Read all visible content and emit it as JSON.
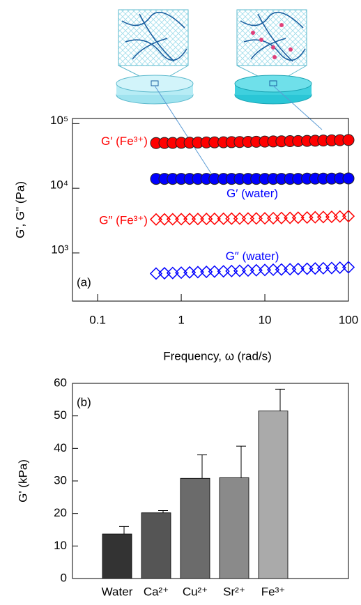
{
  "chart_data": [
    {
      "type": "scatter",
      "xscale": "log",
      "yscale": "log",
      "x_label": "Frequency, ω (rad/s)",
      "y_label": "G', G\" (Pa)",
      "annotation": "(a)",
      "x": [
        0.5,
        0.63,
        0.79,
        1.0,
        1.26,
        1.58,
        2.0,
        2.5,
        3.2,
        4.0,
        5.0,
        6.3,
        7.9,
        10,
        12.6,
        15.8,
        20,
        25,
        32,
        40,
        50,
        63,
        79,
        100
      ],
      "series": [
        {
          "name": "G′ (Fe³⁺)",
          "color": "#ff0000",
          "marker": "circle",
          "values": [
            50000,
            50200,
            50400,
            50500,
            50700,
            50900,
            51100,
            51300,
            51500,
            51700,
            52000,
            52200,
            52400,
            52700,
            53000,
            53200,
            53500,
            53800,
            54100,
            54400,
            54700,
            55000,
            55400,
            55800
          ]
        },
        {
          "name": "G′ (water)",
          "color": "#0000ff",
          "marker": "circle",
          "values": [
            14000,
            14000,
            14000,
            14000,
            14000,
            14000,
            14000,
            14000,
            14000,
            14000,
            14000,
            14000,
            14000,
            14000,
            14000,
            14000,
            14000,
            14000,
            14100,
            14100,
            14100,
            14100,
            14200,
            14200
          ]
        },
        {
          "name": "G″ (Fe³⁺)",
          "color": "#ff0000",
          "marker": "diamond",
          "values": [
            3300,
            3310,
            3320,
            3330,
            3340,
            3350,
            3360,
            3370,
            3380,
            3390,
            3400,
            3410,
            3420,
            3430,
            3450,
            3470,
            3490,
            3510,
            3530,
            3560,
            3590,
            3620,
            3660,
            3700
          ]
        },
        {
          "name": "G″ (water)",
          "color": "#0000ff",
          "marker": "diamond",
          "values": [
            480,
            485,
            490,
            495,
            500,
            505,
            510,
            515,
            520,
            525,
            530,
            535,
            540,
            545,
            550,
            555,
            560,
            565,
            570,
            575,
            580,
            585,
            592,
            600
          ]
        }
      ],
      "xlim": [
        0.05,
        100
      ],
      "ylim": [
        180,
        120000
      ],
      "xticks": [
        0.1,
        1,
        10,
        100
      ],
      "yticks": [
        {
          "value": 1000,
          "label": "10³"
        },
        {
          "value": 10000,
          "label": "10⁴"
        },
        {
          "value": 100000,
          "label": "10⁵"
        }
      ]
    },
    {
      "type": "bar",
      "y_label": "G' (kPa)",
      "annotation": "(b)",
      "categories": [
        "Water",
        "Ca²⁺",
        "Cu²⁺",
        "Sr²⁺",
        "Fe³⁺"
      ],
      "values": [
        13.7,
        20.2,
        30.8,
        31.0,
        51.5
      ],
      "errors": [
        2.3,
        0.7,
        7.2,
        9.7,
        6.7
      ],
      "colors": [
        "#333333",
        "#555555",
        "#6b6b6b",
        "#8a8a8a",
        "#aaaaaa"
      ],
      "ylim": [
        0,
        60
      ],
      "yticks": [
        0,
        10,
        20,
        30,
        40,
        50,
        60
      ]
    }
  ]
}
